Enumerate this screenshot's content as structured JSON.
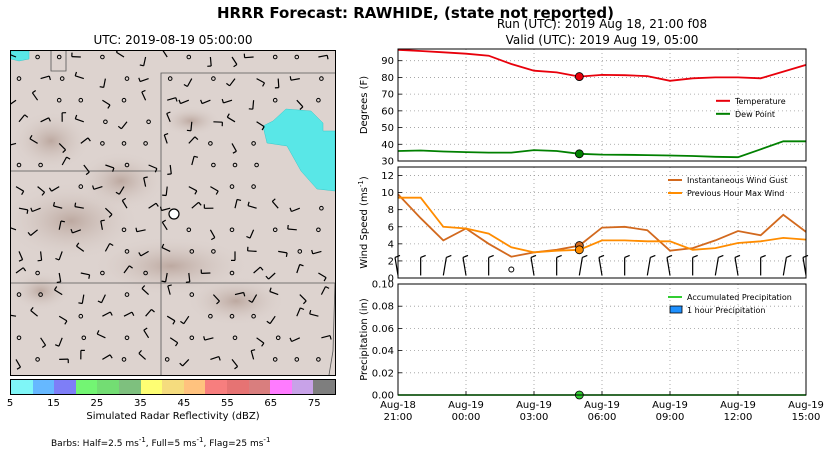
{
  "title": "HRRR Forecast: RAWHIDE, (state not reported)",
  "map": {
    "title": "UTC: 2019-08-19 05:00:00",
    "colorbar": {
      "label": "Simulated Radar Reflectivity (dBZ)",
      "ticks": [
        "5",
        "15",
        "25",
        "35",
        "45",
        "55",
        "65",
        "75"
      ],
      "colors": [
        "#7ff6f7",
        "#66b8ff",
        "#7e7ef7",
        "#73f573",
        "#73dd73",
        "#7ec07e",
        "#fefe73",
        "#f5dc7e",
        "#ffc27e",
        "#f77e7e",
        "#e67373",
        "#d97e7e",
        "#ff7bff",
        "#c8a2e8",
        "#7e7e7e"
      ]
    },
    "barbs_note_parts": [
      "Barbs: Half=2.5 ms",
      "-1",
      ", Full=5 ms",
      "-1",
      ", Flag=25 ms",
      "-1"
    ]
  },
  "run_line": "Run (UTC): 2019 Aug 18, 21:00 f08",
  "valid_line": "Valid (UTC): 2019 Aug 19, 05:00",
  "x_tick_lines": [
    [
      "Aug-18",
      "21:00"
    ],
    [
      "Aug-19",
      "00:00"
    ],
    [
      "Aug-19",
      "03:00"
    ],
    [
      "Aug-19",
      "06:00"
    ],
    [
      "Aug-19",
      "09:00"
    ],
    [
      "Aug-19",
      "12:00"
    ],
    [
      "Aug-19",
      "15:00"
    ]
  ],
  "chart_data": [
    {
      "type": "line",
      "ylabel": "Degrees (F)",
      "ylim": [
        30,
        97
      ],
      "yticks": [
        30,
        40,
        50,
        60,
        70,
        80,
        90
      ],
      "x_hours": [
        0,
        1,
        2,
        3,
        4,
        5,
        6,
        7,
        8,
        9,
        10,
        11,
        12,
        13,
        14,
        15,
        16,
        17,
        18
      ],
      "series": [
        {
          "name": "Temperature",
          "color": "#e8000b",
          "values": [
            96.5,
            95.8,
            95.0,
            94.2,
            93.0,
            88.0,
            84.0,
            83.0,
            80.5,
            81.5,
            81.3,
            80.8,
            78.0,
            79.5,
            80.0,
            80.0,
            79.5,
            83.5,
            87.5
          ]
        },
        {
          "name": "Dew Point",
          "color": "#008000",
          "values": [
            36.0,
            36.3,
            35.7,
            35.3,
            35.0,
            35.0,
            36.5,
            36.0,
            34.3,
            33.8,
            33.7,
            33.5,
            33.3,
            33.0,
            32.5,
            32.3,
            37.0,
            41.8,
            41.8
          ]
        }
      ],
      "marker_hour": 8,
      "legend_position": "right"
    },
    {
      "type": "line",
      "ylabel_parts": [
        "Wind Speed (ms",
        "-1",
        ")"
      ],
      "ylim": [
        0,
        13
      ],
      "yticks": [
        0,
        2,
        4,
        6,
        8,
        10,
        12
      ],
      "x_hours": [
        0,
        1,
        2,
        3,
        4,
        5,
        6,
        7,
        8,
        9,
        10,
        11,
        12,
        13,
        14,
        15,
        16,
        17,
        18
      ],
      "series": [
        {
          "name": "Instantaneous Wind Gust",
          "color": "#d2691e",
          "values": [
            9.8,
            7.0,
            4.4,
            5.8,
            4.0,
            2.5,
            3.0,
            3.3,
            3.8,
            5.9,
            6.0,
            5.6,
            3.2,
            3.5,
            4.4,
            5.5,
            5.0,
            7.4,
            5.4
          ]
        },
        {
          "name": "Previous Hour Max Wind",
          "color": "#ff8c00",
          "values": [
            9.4,
            9.4,
            6.0,
            5.8,
            5.2,
            3.6,
            3.0,
            3.2,
            3.3,
            4.4,
            4.4,
            4.3,
            4.3,
            3.3,
            3.5,
            4.1,
            4.3,
            4.7,
            4.5
          ]
        }
      ],
      "marker_hour": 8,
      "barb_hours": [
        0,
        1,
        2,
        3,
        4,
        5,
        6,
        7,
        8,
        9,
        10,
        11,
        12,
        13,
        14,
        15,
        16,
        17,
        18
      ],
      "legend_position": "top-right"
    },
    {
      "type": "line",
      "ylabel": "Precipitation (in)",
      "ylim": [
        0,
        0.1
      ],
      "yticks": [
        0.0,
        0.02,
        0.04,
        0.06,
        0.08,
        0.1
      ],
      "ytick_labels": [
        "0.00",
        "0.02",
        "0.04",
        "0.06",
        "0.08",
        "0.10"
      ],
      "x_hours": [
        0,
        1,
        2,
        3,
        4,
        5,
        6,
        7,
        8,
        9,
        10,
        11,
        12,
        13,
        14,
        15,
        16,
        17,
        18
      ],
      "series": [
        {
          "name": "Accumulated Precipitation",
          "color": "#32cd32",
          "values": [
            0,
            0,
            0,
            0,
            0,
            0,
            0,
            0,
            0,
            0,
            0,
            0,
            0,
            0,
            0,
            0,
            0,
            0,
            0
          ]
        },
        {
          "name": "1 hour Precipitation",
          "color": "#1e90ff",
          "type": "bar",
          "values": [
            0,
            0,
            0,
            0,
            0,
            0,
            0,
            0,
            0,
            0,
            0,
            0,
            0,
            0,
            0,
            0,
            0,
            0,
            0
          ]
        }
      ],
      "marker_hour": 8,
      "legend_position": "top-right"
    }
  ]
}
